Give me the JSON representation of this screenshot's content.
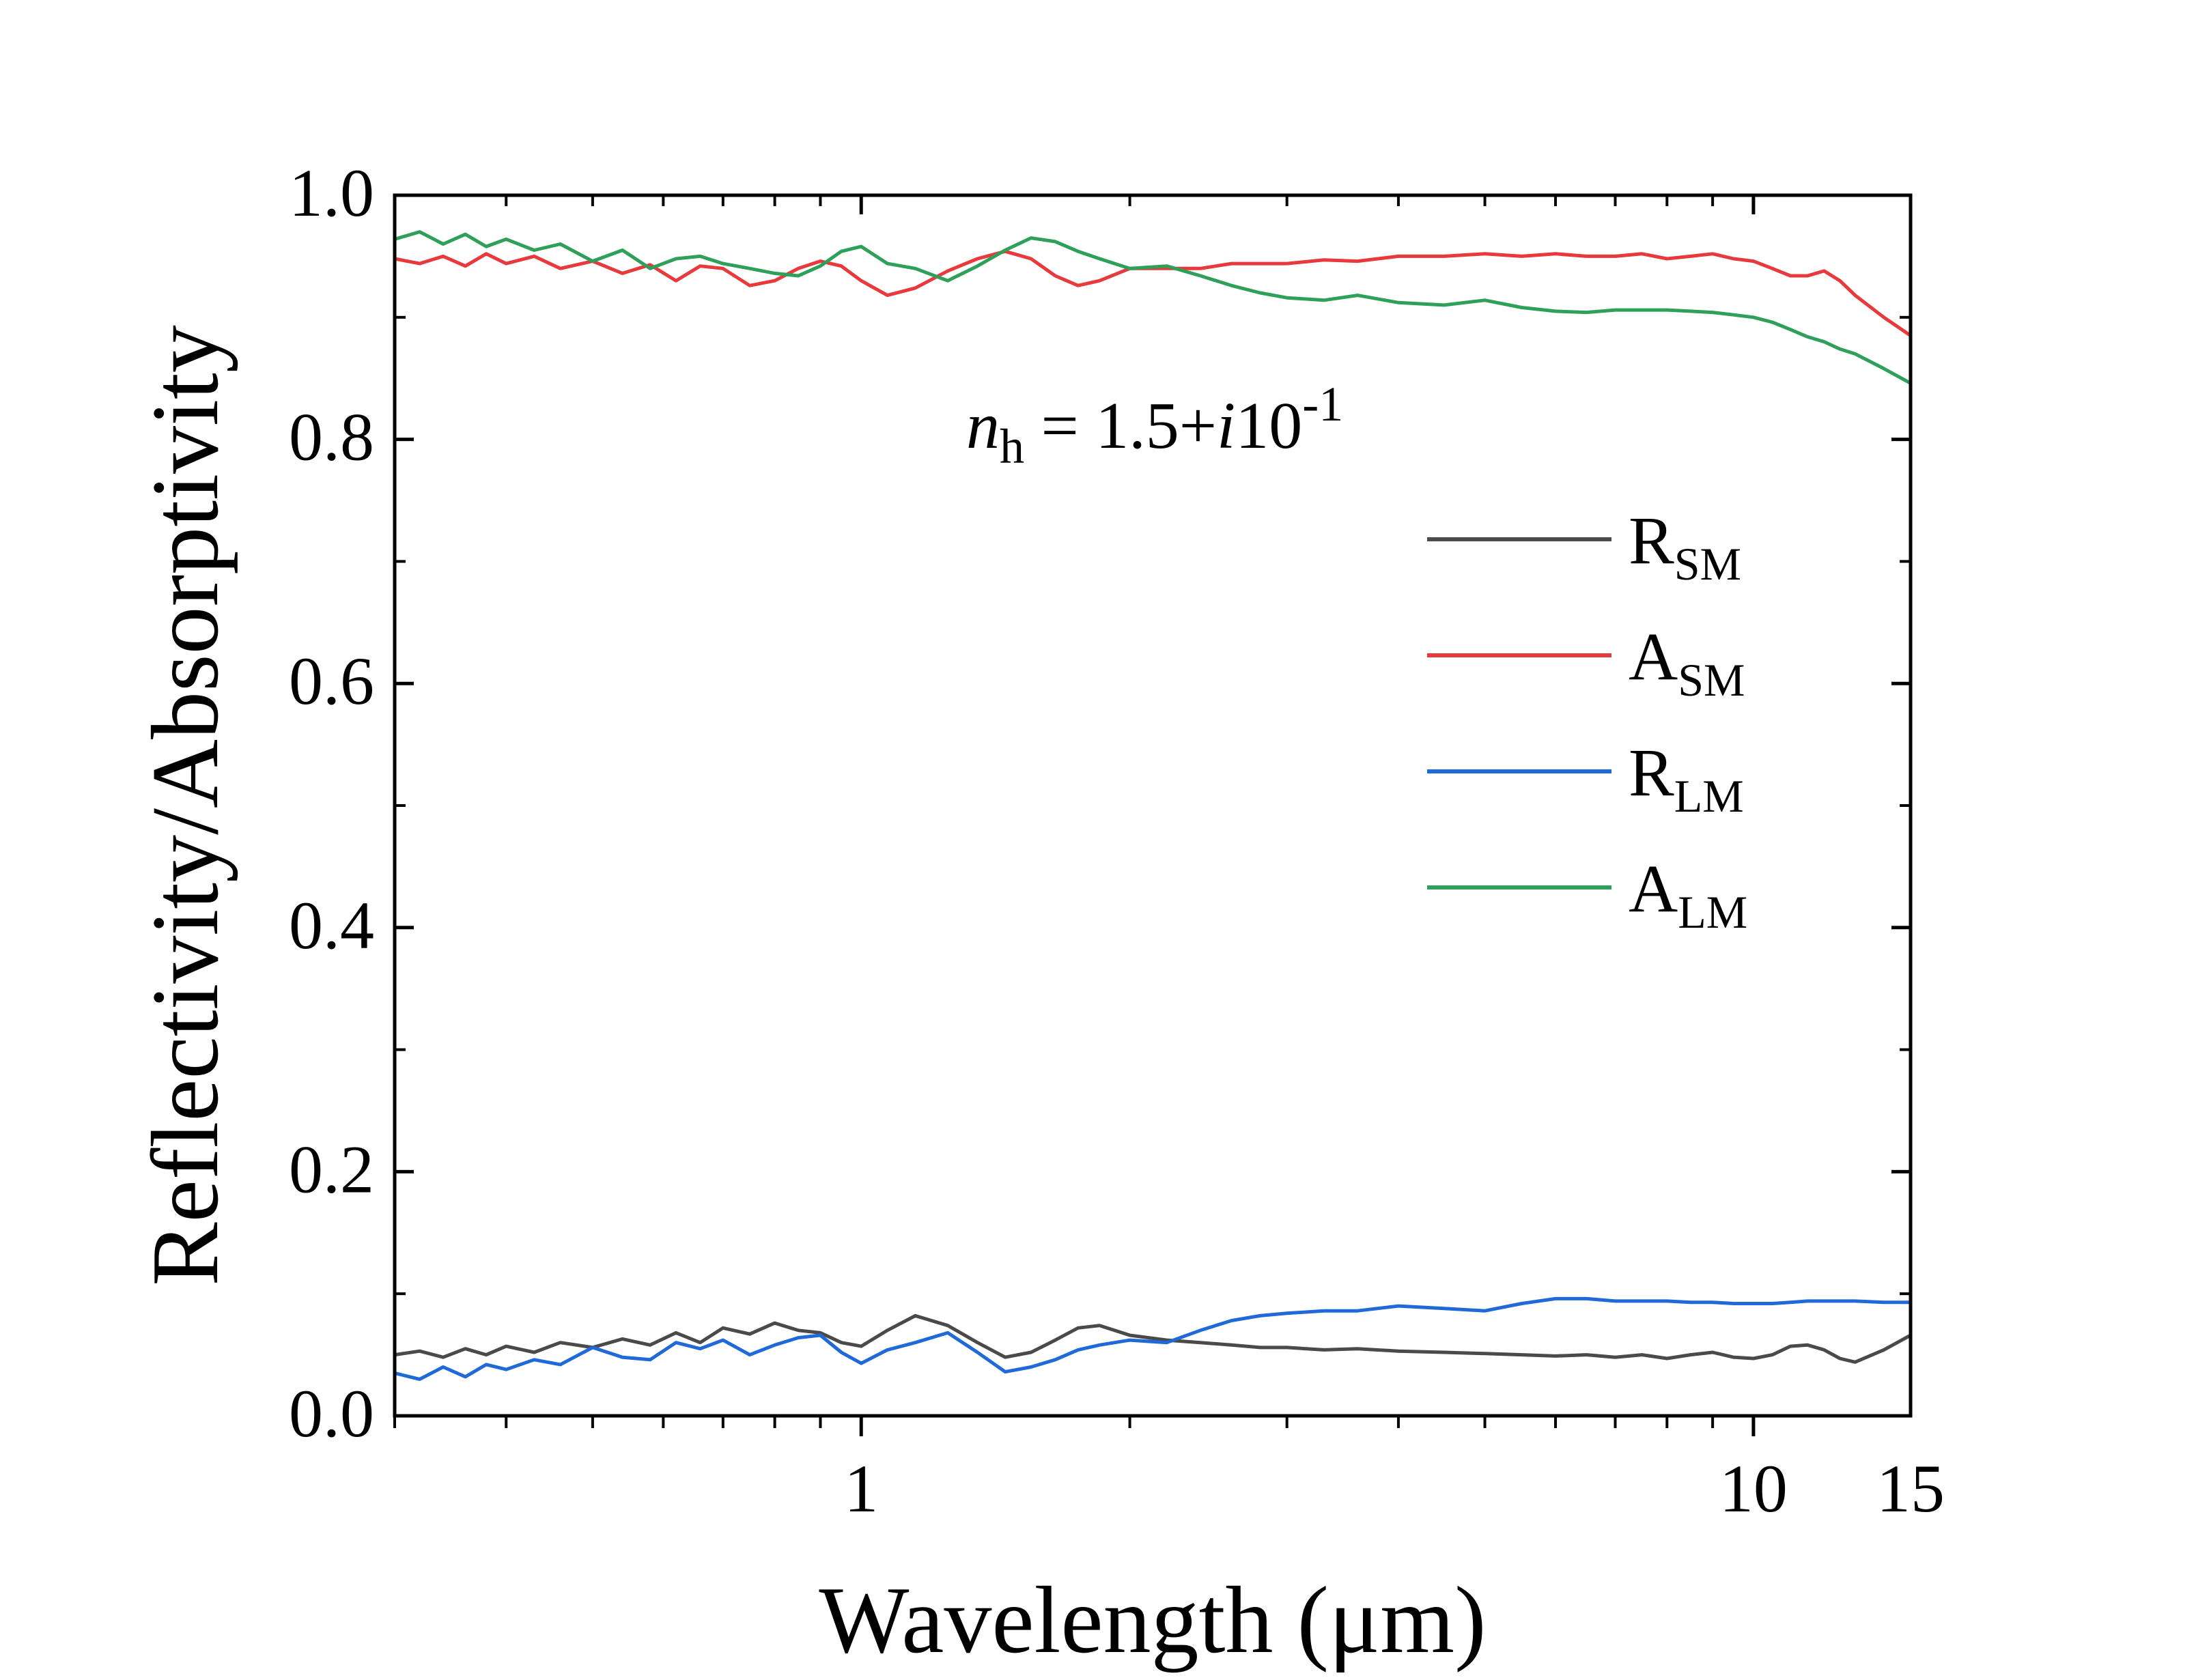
{
  "chart_data": {
    "type": "line",
    "xscale": "log",
    "xlabel": "Wavelength (μm)",
    "ylabel": "Reflectivity/Absorptivity",
    "xlim": [
      0.3,
      15
    ],
    "ylim": [
      0.0,
      1.0
    ],
    "grid": false,
    "legend_position": "right",
    "x_ticks": [
      1,
      10,
      15
    ],
    "x_tick_labels": [
      "1",
      "10",
      "15"
    ],
    "y_ticks": [
      0.0,
      0.2,
      0.4,
      0.6,
      0.8,
      1.0
    ],
    "y_tick_labels": [
      "0.0",
      "0.2",
      "0.4",
      "0.6",
      "0.8",
      "1.0"
    ],
    "annotation": {
      "symbol": "n",
      "subscript": "h",
      "middle": " = 1.5+",
      "imag": "i",
      "rest": "10",
      "superscript": "-1"
    },
    "series": [
      {
        "name": "R",
        "sub": "SM",
        "color": "#4a4a4a",
        "x": [
          0.3,
          0.32,
          0.34,
          0.36,
          0.38,
          0.4,
          0.43,
          0.46,
          0.5,
          0.54,
          0.58,
          0.62,
          0.66,
          0.7,
          0.75,
          0.8,
          0.85,
          0.9,
          0.95,
          1.0,
          1.07,
          1.15,
          1.25,
          1.35,
          1.45,
          1.55,
          1.65,
          1.75,
          1.85,
          2.0,
          2.2,
          2.4,
          2.6,
          2.8,
          3.0,
          3.3,
          3.6,
          4.0,
          4.5,
          5.0,
          5.5,
          6.0,
          6.5,
          7.0,
          7.5,
          8.0,
          8.5,
          9.0,
          9.5,
          10.0,
          10.5,
          11.0,
          11.5,
          12.0,
          12.5,
          13.0,
          14.0,
          15.0
        ],
        "y": [
          0.05,
          0.053,
          0.048,
          0.055,
          0.05,
          0.057,
          0.052,
          0.06,
          0.056,
          0.063,
          0.058,
          0.068,
          0.06,
          0.072,
          0.067,
          0.076,
          0.07,
          0.068,
          0.06,
          0.057,
          0.07,
          0.082,
          0.074,
          0.06,
          0.048,
          0.052,
          0.062,
          0.072,
          0.074,
          0.066,
          0.062,
          0.06,
          0.058,
          0.056,
          0.056,
          0.054,
          0.055,
          0.053,
          0.052,
          0.051,
          0.05,
          0.049,
          0.05,
          0.048,
          0.05,
          0.047,
          0.05,
          0.052,
          0.048,
          0.047,
          0.05,
          0.057,
          0.058,
          0.054,
          0.047,
          0.044,
          0.054,
          0.066
        ]
      },
      {
        "name": "A",
        "sub": "SM",
        "color": "#e8393c",
        "x": [
          0.3,
          0.32,
          0.34,
          0.36,
          0.38,
          0.4,
          0.43,
          0.46,
          0.5,
          0.54,
          0.58,
          0.62,
          0.66,
          0.7,
          0.75,
          0.8,
          0.85,
          0.9,
          0.95,
          1.0,
          1.07,
          1.15,
          1.25,
          1.35,
          1.45,
          1.55,
          1.65,
          1.75,
          1.85,
          2.0,
          2.2,
          2.4,
          2.6,
          2.8,
          3.0,
          3.3,
          3.6,
          4.0,
          4.5,
          5.0,
          5.5,
          6.0,
          6.5,
          7.0,
          7.5,
          8.0,
          8.5,
          9.0,
          9.5,
          10.0,
          10.5,
          11.0,
          11.5,
          12.0,
          12.5,
          13.0,
          14.0,
          15.0
        ],
        "y": [
          0.948,
          0.944,
          0.95,
          0.942,
          0.952,
          0.944,
          0.95,
          0.94,
          0.946,
          0.936,
          0.943,
          0.93,
          0.942,
          0.94,
          0.926,
          0.93,
          0.94,
          0.946,
          0.942,
          0.93,
          0.918,
          0.924,
          0.938,
          0.948,
          0.954,
          0.948,
          0.934,
          0.926,
          0.93,
          0.94,
          0.94,
          0.94,
          0.944,
          0.944,
          0.944,
          0.947,
          0.946,
          0.95,
          0.95,
          0.952,
          0.95,
          0.952,
          0.95,
          0.95,
          0.952,
          0.948,
          0.95,
          0.952,
          0.948,
          0.946,
          0.94,
          0.934,
          0.934,
          0.938,
          0.93,
          0.918,
          0.9,
          0.885
        ]
      },
      {
        "name": "R",
        "sub": "LM",
        "color": "#1f6ad8",
        "x": [
          0.3,
          0.32,
          0.34,
          0.36,
          0.38,
          0.4,
          0.43,
          0.46,
          0.5,
          0.54,
          0.58,
          0.62,
          0.66,
          0.7,
          0.75,
          0.8,
          0.85,
          0.9,
          0.95,
          1.0,
          1.07,
          1.15,
          1.25,
          1.35,
          1.45,
          1.55,
          1.65,
          1.75,
          1.85,
          2.0,
          2.2,
          2.4,
          2.6,
          2.8,
          3.0,
          3.3,
          3.6,
          4.0,
          4.5,
          5.0,
          5.5,
          6.0,
          6.5,
          7.0,
          7.5,
          8.0,
          8.5,
          9.0,
          9.5,
          10.0,
          10.5,
          11.0,
          11.5,
          12.0,
          12.5,
          13.0,
          14.0,
          15.0
        ],
        "y": [
          0.035,
          0.03,
          0.04,
          0.032,
          0.042,
          0.038,
          0.046,
          0.042,
          0.056,
          0.048,
          0.046,
          0.06,
          0.055,
          0.062,
          0.05,
          0.058,
          0.064,
          0.066,
          0.052,
          0.043,
          0.054,
          0.06,
          0.068,
          0.052,
          0.036,
          0.04,
          0.046,
          0.054,
          0.058,
          0.062,
          0.06,
          0.07,
          0.078,
          0.082,
          0.084,
          0.086,
          0.086,
          0.09,
          0.088,
          0.086,
          0.092,
          0.096,
          0.096,
          0.094,
          0.094,
          0.094,
          0.093,
          0.093,
          0.092,
          0.092,
          0.092,
          0.093,
          0.094,
          0.094,
          0.094,
          0.094,
          0.093,
          0.093
        ]
      },
      {
        "name": "A",
        "sub": "LM",
        "color": "#2ea05a",
        "x": [
          0.3,
          0.32,
          0.34,
          0.36,
          0.38,
          0.4,
          0.43,
          0.46,
          0.5,
          0.54,
          0.58,
          0.62,
          0.66,
          0.7,
          0.75,
          0.8,
          0.85,
          0.9,
          0.95,
          1.0,
          1.07,
          1.15,
          1.25,
          1.35,
          1.45,
          1.55,
          1.65,
          1.75,
          1.85,
          2.0,
          2.2,
          2.4,
          2.6,
          2.8,
          3.0,
          3.3,
          3.6,
          4.0,
          4.5,
          5.0,
          5.5,
          6.0,
          6.5,
          7.0,
          7.5,
          8.0,
          8.5,
          9.0,
          9.5,
          10.0,
          10.5,
          11.0,
          11.5,
          12.0,
          12.5,
          13.0,
          14.0,
          15.0
        ],
        "y": [
          0.964,
          0.97,
          0.96,
          0.968,
          0.958,
          0.964,
          0.955,
          0.96,
          0.946,
          0.955,
          0.94,
          0.948,
          0.95,
          0.944,
          0.94,
          0.936,
          0.934,
          0.942,
          0.954,
          0.958,
          0.944,
          0.94,
          0.93,
          0.942,
          0.955,
          0.965,
          0.962,
          0.954,
          0.948,
          0.94,
          0.942,
          0.934,
          0.926,
          0.92,
          0.916,
          0.914,
          0.918,
          0.912,
          0.91,
          0.914,
          0.908,
          0.905,
          0.904,
          0.906,
          0.906,
          0.906,
          0.905,
          0.904,
          0.902,
          0.9,
          0.896,
          0.89,
          0.884,
          0.88,
          0.874,
          0.87,
          0.858,
          0.846
        ]
      }
    ]
  }
}
